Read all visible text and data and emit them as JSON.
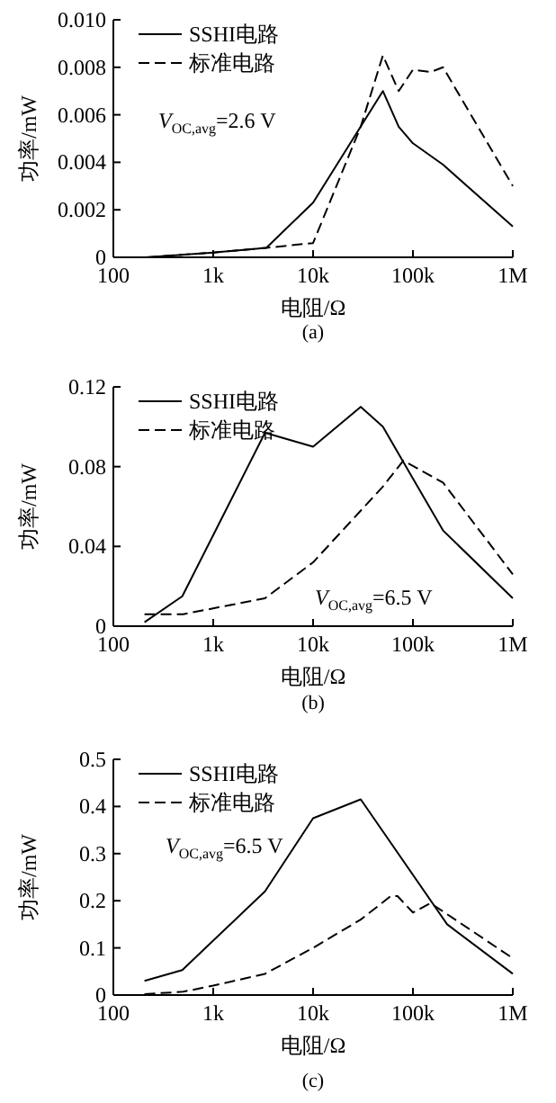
{
  "chart_data": [
    {
      "type": "line",
      "log": "x",
      "legend": "top left",
      "xlabel": "电阻/Ω",
      "ylabel": "功率/mW",
      "xlim": [
        100,
        1000000
      ],
      "xticks": [
        {
          "value": 100,
          "label": "100"
        },
        {
          "value": 1000,
          "label": "1k"
        },
        {
          "value": 10000,
          "label": "10k"
        },
        {
          "value": 100000,
          "label": "100k"
        },
        {
          "value": 1000000,
          "label": "1M"
        }
      ],
      "ylim": [
        0,
        0.01
      ],
      "yticks": [
        0,
        0.002,
        0.004,
        0.006,
        0.008,
        {
          "value": 0.01,
          "label": "0.010"
        }
      ],
      "annotations": [
        "*V*$_{OC,avg}$=2.6 V",
        "(a)"
      ],
      "series": [
        {
          "name": "SSHI电路",
          "color": "#000000",
          "line_style": "solid",
          "x": [
            215,
            1000,
            3400,
            10000,
            50000,
            72000,
            100000,
            200000,
            1000000
          ],
          "values": [
            0,
            0.0002,
            0.0004,
            0.0023,
            0.007,
            0.0055,
            0.0048,
            0.0039,
            0.0013
          ]
        },
        {
          "name": "标准电路",
          "color": "#000000",
          "line_style": "dashed",
          "x": [
            215,
            1000,
            3400,
            10000,
            30000,
            50000,
            72000,
            100000,
            150000,
            200000,
            1000000
          ],
          "values": [
            0,
            0.0002,
            0.0004,
            0.0006,
            0.0055,
            0.0085,
            0.007,
            0.0079,
            0.0078,
            0.008,
            0.003
          ]
        }
      ]
    },
    {
      "type": "line",
      "log": "x",
      "legend": "top left",
      "xlabel": "电阻/Ω",
      "ylabel": "功率/mW",
      "xlim": [
        100,
        1000000
      ],
      "xticks": [
        {
          "value": 100,
          "label": "100"
        },
        {
          "value": 1000,
          "label": "1k"
        },
        {
          "value": 10000,
          "label": "10k"
        },
        {
          "value": 100000,
          "label": "100k"
        },
        {
          "value": 1000000,
          "label": "1M"
        }
      ],
      "ylim": [
        0,
        0.12
      ],
      "yticks": [
        0,
        0.04,
        0.08,
        0.12
      ],
      "annotations": [
        "*V*$_{OC,avg}$=6.5 V",
        "(b)"
      ],
      "series": [
        {
          "name": "SSHI电路",
          "color": "#000000",
          "line_style": "solid",
          "x": [
            205,
            490,
            3300,
            10000,
            30000,
            50000,
            200000,
            1000000
          ],
          "values": [
            0.002,
            0.015,
            0.097,
            0.09,
            0.11,
            0.1,
            0.048,
            0.014
          ]
        },
        {
          "name": "标准电路",
          "color": "#000000",
          "line_style": "dashed",
          "x": [
            205,
            500,
            3300,
            10000,
            50000,
            80000,
            200000,
            1000000
          ],
          "values": [
            0.006,
            0.006,
            0.014,
            0.032,
            0.07,
            0.083,
            0.072,
            0.026
          ]
        }
      ]
    },
    {
      "type": "line",
      "log": "x",
      "legend": "top left",
      "xlabel": "电阻/Ω",
      "ylabel": "功率/mW",
      "xlim": [
        100,
        1000000
      ],
      "xticks": [
        {
          "value": 100,
          "label": "100"
        },
        {
          "value": 1000,
          "label": "1k"
        },
        {
          "value": 10000,
          "label": "10k"
        },
        {
          "value": 100000,
          "label": "100k"
        },
        {
          "value": 1000000,
          "label": "1M"
        }
      ],
      "ylim": [
        0,
        0.5
      ],
      "yticks": [
        0,
        0.1,
        0.2,
        0.3,
        0.4,
        0.5
      ],
      "annotations": [
        "*V*$_{OC,avg}$=6.5 V",
        "(c)"
      ],
      "series": [
        {
          "name": "SSHI电路",
          "color": "#000000",
          "line_style": "solid",
          "x": [
            205,
            490,
            3300,
            10000,
            30000,
            220000,
            1000000
          ],
          "values": [
            0.03,
            0.053,
            0.22,
            0.375,
            0.415,
            0.15,
            0.045
          ]
        },
        {
          "name": "标准电路",
          "color": "#000000",
          "line_style": "dashed",
          "x": [
            205,
            500,
            1000,
            3300,
            10000,
            30000,
            60000,
            70000,
            100000,
            150000,
            1000000
          ],
          "values": [
            0.002,
            0.007,
            0.02,
            0.045,
            0.1,
            0.16,
            0.21,
            0.21,
            0.175,
            0.195,
            0.078
          ]
        }
      ]
    }
  ]
}
